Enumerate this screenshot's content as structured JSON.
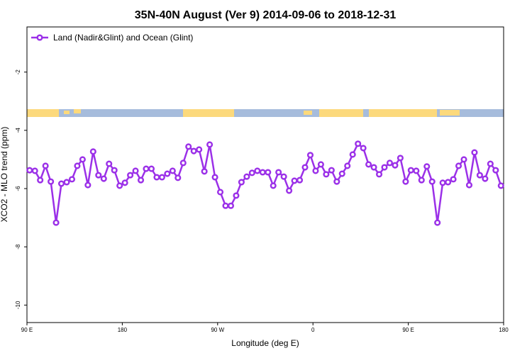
{
  "chart_data": {
    "type": "line",
    "title": "35N-40N August (Ver 9)   2014-09-06 to 2018-12-31",
    "x_label": "Longitude (deg E)",
    "y_label": "XCO2 - MLO trend (ppm)",
    "xlim": [
      90,
      540
    ],
    "ylim": [
      -10.6,
      -0.45
    ],
    "xticks": [
      {
        "value": 90,
        "label": "90 E"
      },
      180,
      {
        "value": 270,
        "label": "90 W"
      },
      {
        "value": 360,
        "label": "0"
      },
      {
        "value": 450,
        "label": "90 E"
      },
      {
        "value": 540,
        "label": "180"
      }
    ],
    "yticks": [
      -2,
      -4,
      -6,
      -8,
      -10
    ],
    "legend": "top-left",
    "x": [
      92.5,
      97.5,
      102.5,
      107.5,
      112.5,
      117.5,
      122.5,
      127.5,
      132.5,
      137.5,
      142.5,
      147.5,
      152.5,
      157.5,
      162.5,
      167.5,
      172.5,
      177.5,
      182.5,
      187.5,
      192.5,
      197.5,
      202.5,
      207.5,
      212.5,
      217.5,
      222.5,
      227.5,
      232.5,
      237.5,
      242.5,
      247.5,
      252.5,
      257.5,
      262.5,
      267.5,
      272.5,
      277.5,
      282.5,
      287.5,
      292.5,
      297.5,
      302.5,
      307.5,
      312.5,
      317.5,
      322.5,
      327.5,
      332.5,
      337.5,
      342.5,
      347.5,
      352.5,
      357.5,
      362.5,
      367.5,
      372.5,
      377.5,
      382.5,
      387.5,
      392.5,
      397.5,
      402.5,
      407.5,
      412.5,
      417.5,
      422.5,
      427.5,
      432.5,
      437.5,
      442.5,
      447.5,
      452.5,
      457.5,
      462.5,
      467.5,
      472.5,
      477.5,
      482.5,
      487.5,
      492.5,
      497.5,
      502.5,
      507.5,
      512.5,
      517.5,
      522.5,
      527.5,
      532.5,
      537.5
    ],
    "series": [
      {
        "name": "Land (Nadir&Glint) and Ocean (Glint)",
        "color": "#9b30e8",
        "values": [
          -5.37,
          -5.39,
          -5.71,
          -5.22,
          -5.76,
          -7.17,
          -5.83,
          -5.78,
          -5.68,
          -5.22,
          -5.0,
          -5.88,
          -4.73,
          -5.54,
          -5.66,
          -5.15,
          -5.37,
          -5.9,
          -5.8,
          -5.54,
          -5.39,
          -5.71,
          -5.32,
          -5.32,
          -5.61,
          -5.61,
          -5.49,
          -5.39,
          -5.63,
          -5.12,
          -4.56,
          -4.71,
          -4.66,
          -5.41,
          -4.49,
          -5.61,
          -6.12,
          -6.59,
          -6.59,
          -6.24,
          -5.78,
          -5.59,
          -5.46,
          -5.39,
          -5.44,
          -5.44,
          -5.9,
          -5.44,
          -5.59,
          -6.07,
          -5.73,
          -5.71,
          -5.27,
          -4.85,
          -5.39,
          -5.17,
          -5.51,
          -5.37,
          -5.76,
          -5.49,
          -5.22,
          -4.83,
          -4.46,
          -4.61,
          -5.17,
          -5.27,
          -5.51,
          -5.27,
          -5.12,
          -5.2,
          -4.95,
          -5.76,
          -5.37,
          -5.39,
          -5.71,
          -5.24,
          -5.76,
          -7.17,
          -5.8,
          -5.78,
          -5.68,
          -5.22,
          -5.0,
          -5.88,
          -4.76,
          -5.54,
          -5.66,
          -5.15,
          -5.37,
          -5.9
        ]
      }
    ]
  }
}
